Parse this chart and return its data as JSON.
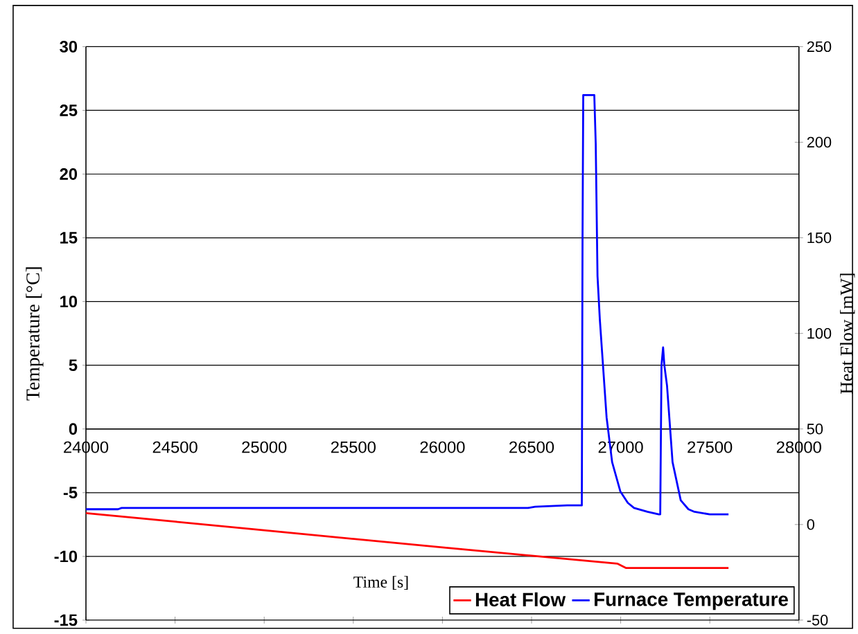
{
  "chart_data": {
    "type": "line",
    "xlabel": "Time [s]",
    "ylabel": "Temperature [°C]",
    "y2label": "Heat Flow [mW]",
    "xlim": [
      24000,
      28000
    ],
    "xticks": [
      24000,
      24500,
      25000,
      25500,
      26000,
      26500,
      27000,
      27500,
      28000
    ],
    "ylim": [
      -15,
      30
    ],
    "yticks": [
      -15,
      -10,
      -5,
      0,
      5,
      10,
      15,
      20,
      25,
      30
    ],
    "y2lim": [
      -50,
      250
    ],
    "y2ticks": [
      -50,
      0,
      50,
      100,
      150,
      200,
      250
    ],
    "grid": "y",
    "legend": "bottom right",
    "series": [
      {
        "name": "Heat Flow",
        "color": "#ff0000",
        "axis": "y2",
        "x": [
          24000,
          24500,
          25000,
          25500,
          26000,
          26500,
          26983,
          27029,
          27300,
          27605
        ],
        "values": [
          6,
          1.5,
          -3,
          -7.5,
          -12,
          -16.3,
          -20.5,
          -22.7,
          -22.7,
          -22.7
        ]
      },
      {
        "name": "Furnace Temperature",
        "color": "#0000ff",
        "axis": "y",
        "x": [
          24000,
          24180,
          24200,
          24400,
          25000,
          25500,
          26000,
          26480,
          26520,
          26700,
          26782,
          26786,
          26790,
          26852,
          26860,
          26870,
          26883,
          26921,
          26952,
          26998,
          27040,
          27075,
          27150,
          27214,
          27222,
          27229,
          27238,
          27245,
          27260,
          27291,
          27337,
          27380,
          27414,
          27500,
          27605
        ],
        "values": [
          -6.3,
          -6.3,
          -6.2,
          -6.2,
          -6.2,
          -6.2,
          -6.2,
          -6.2,
          -6.1,
          -6.0,
          -6.0,
          15,
          26.2,
          26.2,
          22.4,
          12,
          8.6,
          0.9,
          -2.6,
          -4.9,
          -5.8,
          -6.2,
          -6.5,
          -6.7,
          -6.7,
          5,
          6.4,
          5,
          3.4,
          -2.6,
          -5.6,
          -6.3,
          -6.5,
          -6.7,
          -6.7
        ]
      }
    ]
  }
}
